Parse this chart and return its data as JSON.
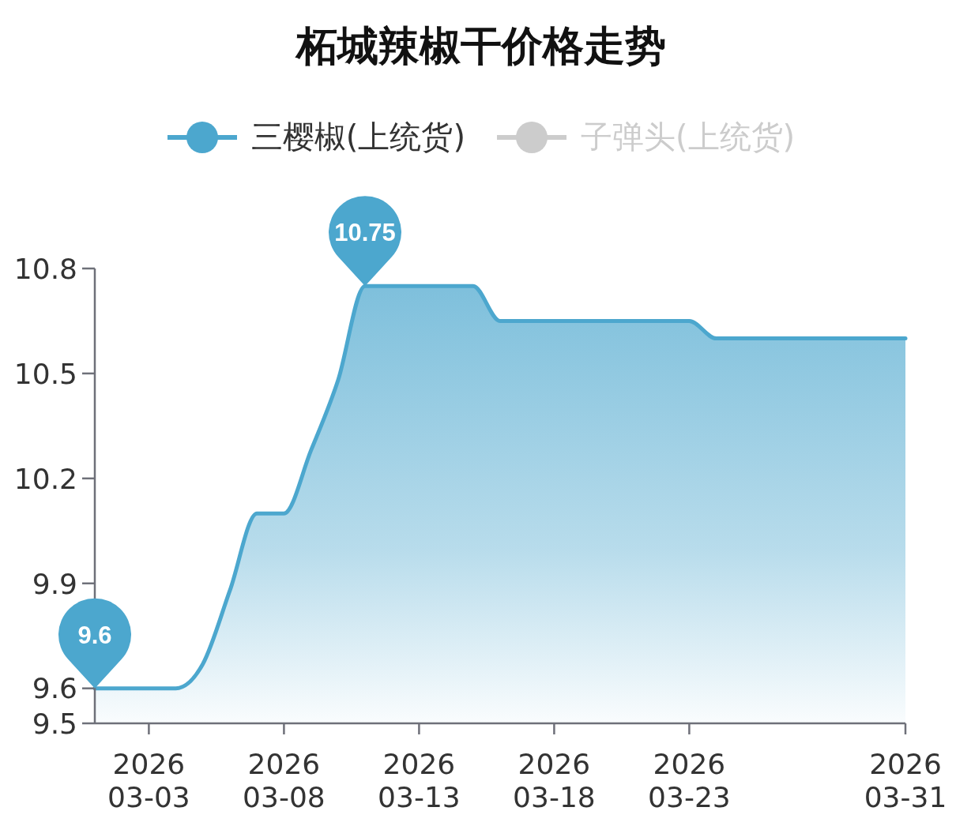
{
  "chart_data": {
    "type": "area",
    "title": "柘城辣椒干价格走势",
    "x": [
      "2026-03-01",
      "2026-03-02",
      "2026-03-03",
      "2026-03-04",
      "2026-03-05",
      "2026-03-06",
      "2026-03-07",
      "2026-03-08",
      "2026-03-09",
      "2026-03-10",
      "2026-03-11",
      "2026-03-12",
      "2026-03-13",
      "2026-03-14",
      "2026-03-15",
      "2026-03-16",
      "2026-03-17",
      "2026-03-18",
      "2026-03-19",
      "2026-03-20",
      "2026-03-21",
      "2026-03-22",
      "2026-03-23",
      "2026-03-24",
      "2026-03-25",
      "2026-03-26",
      "2026-03-27",
      "2026-03-28",
      "2026-03-29",
      "2026-03-30",
      "2026-03-31"
    ],
    "series": [
      {
        "name": "三樱椒(上统货)",
        "color": "#4ca7ce",
        "values": [
          9.6,
          9.6,
          9.6,
          9.6,
          9.67,
          9.88,
          10.1,
          10.1,
          10.28,
          10.48,
          10.75,
          10.75,
          10.75,
          10.75,
          10.75,
          10.65,
          10.65,
          10.65,
          10.65,
          10.65,
          10.65,
          10.65,
          10.65,
          10.6,
          10.6,
          10.6,
          10.6,
          10.6,
          10.6,
          10.6,
          10.6
        ],
        "value_labels": [
          "9.6",
          null,
          null,
          null,
          null,
          null,
          null,
          null,
          null,
          null,
          "10.75",
          null,
          null,
          null,
          null,
          null,
          null,
          null,
          null,
          null,
          null,
          null,
          null,
          null,
          null,
          null,
          null,
          null,
          null,
          null,
          null
        ]
      },
      {
        "name": "子弹头(上统货)",
        "color": "#cccccc",
        "values": [
          null,
          null,
          null,
          null,
          null,
          null,
          null,
          null,
          null,
          null,
          null,
          null,
          null,
          null,
          null,
          null,
          null,
          null,
          null,
          null,
          null,
          null,
          null,
          null,
          null,
          null,
          null,
          null,
          null,
          null,
          null
        ]
      }
    ],
    "xlim": [
      "2026-03-01",
      "2026-03-31"
    ],
    "xticks": [
      {
        "value": "2026-03-03",
        "label": "2026\n03-03"
      },
      {
        "value": "2026-03-08",
        "label": "2026\n03-08"
      },
      {
        "value": "2026-03-13",
        "label": "2026\n03-13"
      },
      {
        "value": "2026-03-18",
        "label": "2026\n03-18"
      },
      {
        "value": "2026-03-23",
        "label": "2026\n03-23"
      },
      {
        "value": "2026-03-31",
        "label": "2026\n03-31"
      }
    ],
    "ylim": [
      9.5,
      10.8
    ],
    "yticks": [
      9.5,
      9.6,
      9.9,
      10.2,
      10.5,
      10.8
    ],
    "grid": false,
    "legend": "top",
    "marker": "none",
    "line_style": "solid"
  }
}
